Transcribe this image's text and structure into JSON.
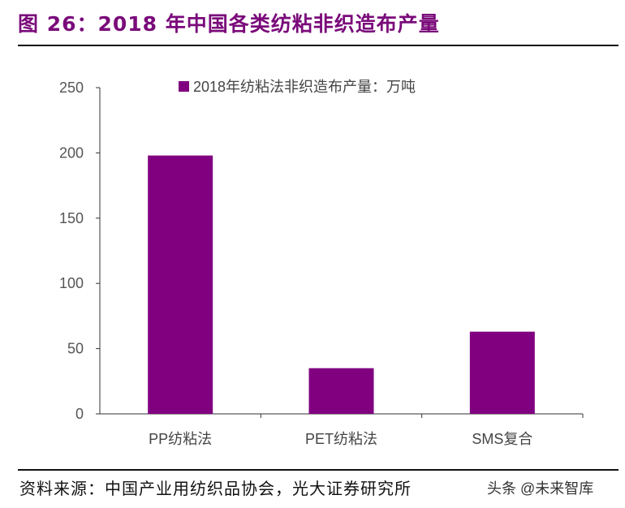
{
  "title": "图 26：2018 年中国各类纺粘非织造布产量",
  "source": "资料来源：中国产业用纺织品协会，光大证券研究所",
  "watermark": "头条 @未来智库",
  "chart_data": {
    "type": "bar",
    "categories": [
      "PP纺粘法",
      "PET纺粘法",
      "SMS复合"
    ],
    "series": [
      {
        "name": "2018年纺粘法非织造布产量：万吨",
        "values": [
          198,
          35,
          63
        ],
        "color": "#800080"
      }
    ],
    "ylim": [
      0,
      250
    ],
    "yticks": [
      0,
      50,
      100,
      150,
      200,
      250
    ],
    "legend": "top",
    "grid": false
  }
}
